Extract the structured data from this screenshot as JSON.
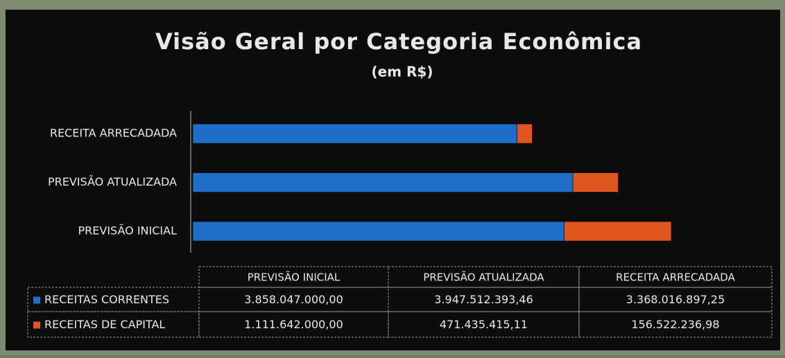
{
  "chart_data": {
    "type": "bar",
    "orientation": "horizontal",
    "stacked": true,
    "title": "Visão Geral por Categoria Econômica",
    "subtitle": "(em R$)",
    "categories": [
      "PREVISÃO INICIAL",
      "PREVISÃO ATUALIZADA",
      "RECEITA ARRECADADA"
    ],
    "series": [
      {
        "name": "RECEITAS CORRENTES",
        "color": "#1f6fc9",
        "values": [
          3858047000.0,
          3947512393.46,
          3368016897.25
        ],
        "value_labels": [
          "3.858.047.000,00",
          "3.947.512.393,46",
          "3.368.016.897,25"
        ]
      },
      {
        "name": "RECEITAS DE CAPITAL",
        "color": "#e0561f",
        "values": [
          1111642000.0,
          471435415.11,
          156522236.98
        ],
        "value_labels": [
          "1.111.642.000,00",
          "471.435.415,11",
          "156.522.236,98"
        ]
      }
    ]
  }
}
